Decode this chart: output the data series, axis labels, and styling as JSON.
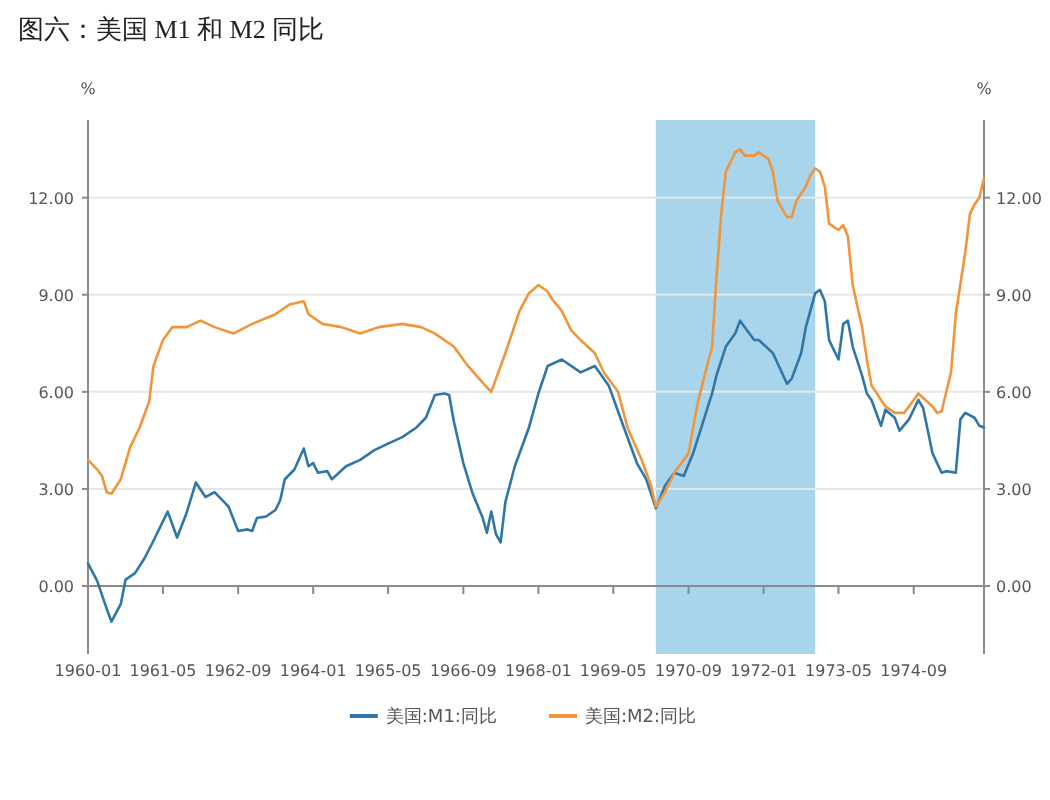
{
  "chart_data": {
    "type": "line",
    "title": "图六：美国 M1 和 M2 同比",
    "ylabel": "%",
    "y2label": "%",
    "xlim": [
      "1960-01",
      "1975-12"
    ],
    "xticks": [
      "1960-01",
      "1961-05",
      "1962-09",
      "1964-01",
      "1965-05",
      "1966-09",
      "1968-01",
      "1969-05",
      "1970-09",
      "1972-01",
      "1973-05",
      "1974-09"
    ],
    "ylim": [
      -2.1,
      14.4
    ],
    "yticks": [
      {
        "value": 0,
        "label": "0.00"
      },
      {
        "value": 3,
        "label": "3.00"
      },
      {
        "value": 6,
        "label": "6.00"
      },
      {
        "value": 9,
        "label": "9.00"
      },
      {
        "value": 12,
        "label": "12.00"
      }
    ],
    "y2lim": [
      -2.1,
      14.4
    ],
    "y2ticks": [
      {
        "value": 0,
        "label": "0.00"
      },
      {
        "value": 3,
        "label": "3.00"
      },
      {
        "value": 6,
        "label": "6.00"
      },
      {
        "value": 9,
        "label": "9.00"
      },
      {
        "value": 12,
        "label": "12.00"
      }
    ],
    "grid": "y",
    "legend": "bottom",
    "bands": [
      {
        "axis": "x",
        "from": "1970-02",
        "to": "1972-12",
        "color": "#a8d4ec"
      }
    ],
    "series": [
      {
        "name": "美国:M1:同比",
        "color": "#2e77a8",
        "x": [
          "1960-01",
          "1960-03",
          "1960-05",
          "1960-06",
          "1960-08",
          "1960-09",
          "1960-11",
          "1961-01",
          "1961-03",
          "1961-06",
          "1961-08",
          "1961-10",
          "1961-12",
          "1962-02",
          "1962-04",
          "1962-06",
          "1962-07",
          "1962-09",
          "1962-11",
          "1962-12",
          "1963-01",
          "1963-03",
          "1963-05",
          "1963-06",
          "1963-07",
          "1963-09",
          "1963-11",
          "1963-12",
          "1964-01",
          "1964-02",
          "1964-04",
          "1964-05",
          "1964-08",
          "1964-11",
          "1965-02",
          "1965-05",
          "1965-08",
          "1965-11",
          "1966-01",
          "1966-03",
          "1966-05",
          "1966-06",
          "1966-07",
          "1966-09",
          "1966-11",
          "1967-01",
          "1967-02",
          "1967-03",
          "1967-04",
          "1967-05",
          "1967-06",
          "1967-08",
          "1967-11",
          "1968-01",
          "1968-03",
          "1968-06",
          "1968-10",
          "1969-01",
          "1969-04",
          "1969-07",
          "1969-10",
          "1969-12",
          "1970-02",
          "1970-04",
          "1970-06",
          "1970-08",
          "1970-10",
          "1971-02",
          "1971-03",
          "1971-05",
          "1971-07",
          "1971-08",
          "1971-11",
          "1971-12",
          "1972-03",
          "1972-06",
          "1972-07",
          "1972-09",
          "1972-10",
          "1972-12",
          "1973-01",
          "1973-02",
          "1973-03",
          "1973-05",
          "1973-06",
          "1973-07",
          "1973-08",
          "1973-10",
          "1973-11",
          "1973-12",
          "1974-02",
          "1974-03",
          "1974-05",
          "1974-06",
          "1974-08",
          "1974-10",
          "1974-11",
          "1975-01",
          "1975-03",
          "1975-04",
          "1975-06",
          "1975-07",
          "1975-08",
          "1975-10",
          "1975-11",
          "1975-12"
        ],
        "values": [
          0.7,
          0.15,
          -0.7,
          -1.1,
          -0.55,
          0.2,
          0.4,
          0.85,
          1.4,
          2.3,
          1.5,
          2.25,
          3.2,
          2.75,
          2.9,
          2.6,
          2.45,
          1.7,
          1.75,
          1.7,
          2.1,
          2.15,
          2.35,
          2.65,
          3.3,
          3.6,
          4.25,
          3.7,
          3.8,
          3.5,
          3.55,
          3.3,
          3.7,
          3.9,
          4.2,
          4.4,
          4.6,
          4.9,
          5.2,
          5.9,
          5.95,
          5.9,
          5.1,
          3.8,
          2.85,
          2.15,
          1.65,
          2.3,
          1.6,
          1.35,
          2.6,
          3.7,
          4.9,
          5.95,
          6.8,
          7.0,
          6.6,
          6.8,
          6.2,
          5.0,
          3.8,
          3.3,
          2.4,
          3.1,
          3.5,
          3.4,
          4.1,
          5.95,
          6.5,
          7.4,
          7.8,
          8.2,
          7.6,
          7.6,
          7.2,
          6.25,
          6.4,
          7.2,
          8.0,
          9.05,
          9.15,
          8.8,
          7.6,
          7.0,
          8.1,
          8.2,
          7.4,
          6.5,
          5.95,
          5.75,
          4.95,
          5.45,
          5.2,
          4.8,
          5.15,
          5.75,
          5.5,
          4.1,
          3.5,
          3.55,
          3.5,
          5.15,
          5.35,
          5.2,
          4.95,
          4.9
        ]
      },
      {
        "name": "美国:M2:同比",
        "color": "#f0953a",
        "x": [
          "1960-01",
          "1960-03",
          "1960-04",
          "1960-05",
          "1960-06",
          "1960-08",
          "1960-10",
          "1960-12",
          "1961-02",
          "1961-03",
          "1961-05",
          "1961-07",
          "1961-10",
          "1962-01",
          "1962-04",
          "1962-08",
          "1962-12",
          "1963-05",
          "1963-08",
          "1963-11",
          "1963-12",
          "1964-03",
          "1964-07",
          "1964-11",
          "1965-03",
          "1965-08",
          "1965-12",
          "1966-03",
          "1966-07",
          "1966-10",
          "1967-01",
          "1967-03",
          "1967-06",
          "1967-09",
          "1967-11",
          "1968-01",
          "1968-03",
          "1968-04",
          "1968-06",
          "1968-08",
          "1968-10",
          "1969-01",
          "1969-03",
          "1969-06",
          "1969-08",
          "1969-11",
          "1970-01",
          "1970-02",
          "1970-04",
          "1970-06",
          "1970-09",
          "1970-11",
          "1971-02",
          "1971-03",
          "1971-04",
          "1971-05",
          "1971-07",
          "1971-08",
          "1971-09",
          "1971-11",
          "1971-12",
          "1972-02",
          "1972-03",
          "1972-04",
          "1972-06",
          "1972-07",
          "1972-08",
          "1972-10",
          "1972-11",
          "1972-12",
          "1973-01",
          "1973-02",
          "1973-03",
          "1973-05",
          "1973-06",
          "1973-07",
          "1973-08",
          "1973-10",
          "1973-11",
          "1973-12",
          "1974-03",
          "1974-05",
          "1974-07",
          "1974-09",
          "1974-10",
          "1975-01",
          "1975-02",
          "1975-03",
          "1975-05",
          "1975-06",
          "1975-08",
          "1975-09",
          "1975-10",
          "1975-11",
          "1975-12"
        ],
        "values": [
          3.9,
          3.6,
          3.4,
          2.9,
          2.85,
          3.3,
          4.3,
          4.9,
          5.7,
          6.8,
          7.6,
          8.0,
          8.0,
          8.2,
          8.0,
          7.8,
          8.1,
          8.4,
          8.7,
          8.8,
          8.4,
          8.1,
          8.0,
          7.8,
          8.0,
          8.1,
          8.0,
          7.8,
          7.4,
          6.8,
          6.3,
          6.0,
          7.2,
          8.5,
          9.05,
          9.3,
          9.1,
          8.85,
          8.5,
          7.9,
          7.6,
          7.2,
          6.6,
          6.0,
          4.9,
          3.9,
          3.1,
          2.45,
          2.9,
          3.5,
          4.1,
          5.7,
          7.4,
          9.5,
          11.5,
          12.8,
          13.4,
          13.5,
          13.3,
          13.3,
          13.4,
          13.2,
          12.8,
          11.9,
          11.4,
          11.4,
          11.9,
          12.35,
          12.7,
          12.9,
          12.8,
          12.35,
          11.2,
          11.0,
          11.15,
          10.8,
          9.3,
          8.0,
          7.0,
          6.2,
          5.55,
          5.35,
          5.35,
          5.75,
          5.95,
          5.55,
          5.35,
          5.4,
          6.6,
          8.4,
          10.3,
          11.5,
          11.8,
          12.0,
          12.6
        ]
      }
    ]
  }
}
